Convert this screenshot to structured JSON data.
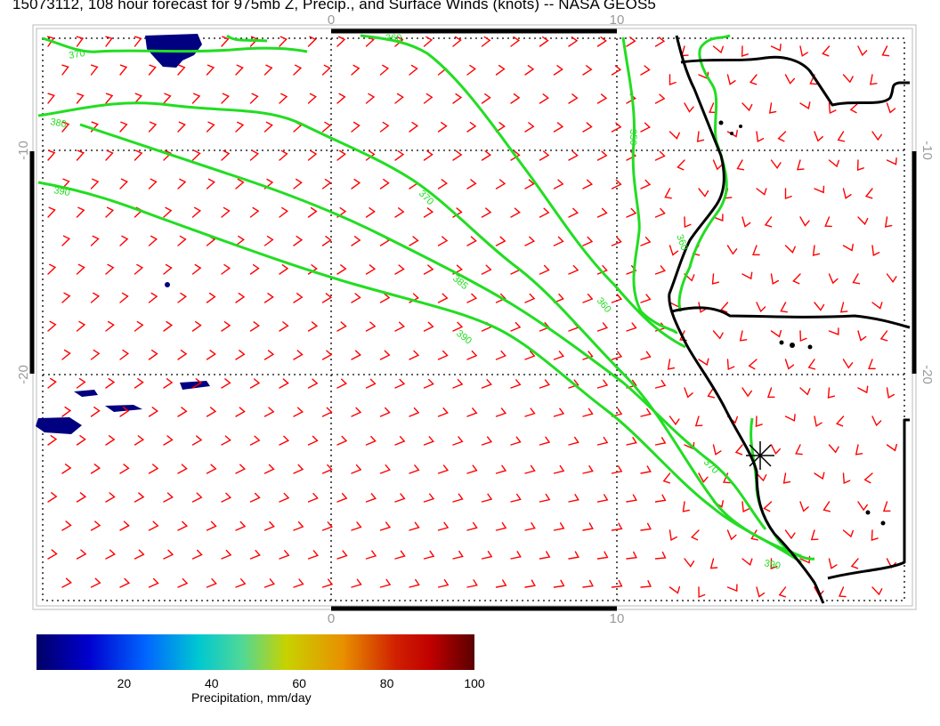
{
  "title": "15073112, 108 hour forecast for 975mb Z, Precip., and Surface Winds (knots) -- NASA GEOS5",
  "axes": {
    "top_ticks": [
      "0",
      "10"
    ],
    "bottom_ticks": [
      "0",
      "10"
    ],
    "left_ticks": [
      "-10",
      "-20"
    ],
    "right_ticks": [
      "-10",
      "-20"
    ]
  },
  "contour_labels": [
    "370",
    "380",
    "390",
    "360",
    "370",
    "350",
    "360",
    "385",
    "390",
    "370",
    "390",
    "360"
  ],
  "colorbar": {
    "ticks": [
      "20",
      "40",
      "60",
      "80",
      "100"
    ],
    "tick_values": [
      20,
      40,
      60,
      80,
      100
    ],
    "range": [
      0,
      100
    ],
    "label": "Precipitation, mm/day"
  },
  "colors": {
    "contours": "#22dd22",
    "wind_barbs": "#ff0000",
    "coastline": "#000000",
    "precip": "#000080",
    "grid": "#000000"
  },
  "icons": [
    "map-marker-star-icon"
  ]
}
